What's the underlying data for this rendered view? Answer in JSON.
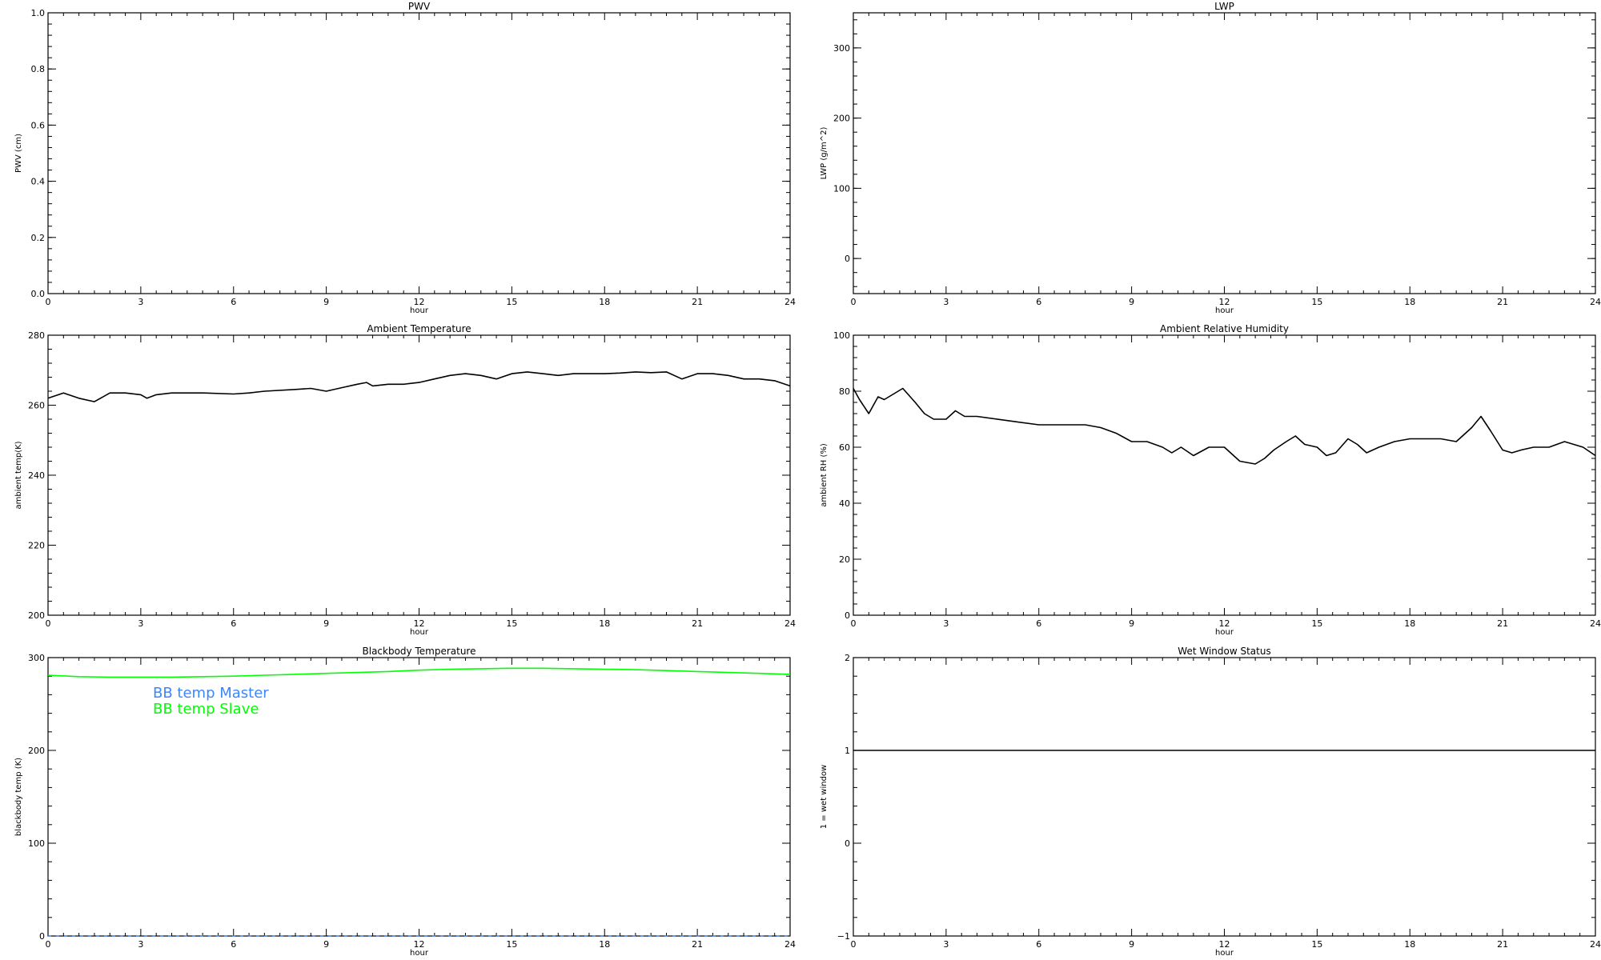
{
  "chart_data": [
    {
      "type": "line",
      "title": "PWV",
      "xlabel": "hour",
      "ylabel": "PWV (cm)",
      "xlim": [
        0,
        24
      ],
      "ylim": [
        0,
        1
      ],
      "xticks": [
        "0",
        "3",
        "6",
        "9",
        "12",
        "15",
        "18",
        "21",
        "24"
      ],
      "yticks": [
        "0.0",
        "0.2",
        "0.4",
        "0.6",
        "0.8",
        "1.0"
      ],
      "series": []
    },
    {
      "type": "line",
      "title": "LWP",
      "xlabel": "hour",
      "ylabel": "LWP (g/m^2)",
      "xlim": [
        0,
        24
      ],
      "ylim": [
        -50,
        350
      ],
      "xticks": [
        "0",
        "3",
        "6",
        "9",
        "12",
        "15",
        "18",
        "21",
        "24"
      ],
      "yticks": [
        "0",
        "100",
        "200",
        "300"
      ],
      "series": []
    },
    {
      "type": "line",
      "title": "Ambient Temperature",
      "xlabel": "hour",
      "ylabel": "ambient temp(K)",
      "xlim": [
        0,
        24
      ],
      "ylim": [
        200,
        280
      ],
      "xticks": [
        "0",
        "3",
        "6",
        "9",
        "12",
        "15",
        "18",
        "21",
        "24"
      ],
      "yticks": [
        "200",
        "220",
        "240",
        "260",
        "280"
      ],
      "series": [
        {
          "color": "#000000",
          "x": [
            0,
            0.5,
            1,
            1.5,
            2,
            2.5,
            3,
            3.2,
            3.5,
            4,
            5,
            6,
            6.5,
            7,
            8,
            8.5,
            9,
            9.5,
            10,
            10.3,
            10.5,
            11,
            11.5,
            12,
            12.5,
            13,
            13.5,
            14,
            14.5,
            15,
            15.5,
            16,
            16.5,
            17,
            17.5,
            18,
            18.5,
            19,
            19.5,
            20,
            20.5,
            21,
            21.5,
            22,
            22.5,
            23,
            23.5,
            24
          ],
          "y": [
            262,
            263.5,
            262,
            261,
            263.5,
            263.5,
            263,
            262,
            263,
            263.5,
            263.5,
            263.2,
            263.5,
            264,
            264.5,
            264.8,
            264,
            265,
            266,
            266.5,
            265.5,
            266,
            266,
            266.5,
            267.5,
            268.5,
            269,
            268.5,
            267.5,
            269,
            269.5,
            269,
            268.5,
            269,
            269,
            269,
            269.2,
            269.5,
            269.3,
            269.5,
            267.5,
            269,
            269,
            268.5,
            267.5,
            267.5,
            267,
            265.5
          ]
        }
      ]
    },
    {
      "type": "line",
      "title": "Ambient Relative Humidity",
      "xlabel": "hour",
      "ylabel": "ambient RH (%)",
      "xlim": [
        0,
        24
      ],
      "ylim": [
        0,
        100
      ],
      "xticks": [
        "0",
        "3",
        "6",
        "9",
        "12",
        "15",
        "18",
        "21",
        "24"
      ],
      "yticks": [
        "0",
        "20",
        "40",
        "60",
        "80",
        "100"
      ],
      "series": [
        {
          "color": "#000000",
          "x": [
            0,
            0.2,
            0.5,
            0.8,
            1,
            1.3,
            1.6,
            2,
            2.3,
            2.6,
            3,
            3.3,
            3.6,
            4,
            5,
            6,
            7,
            7.5,
            8,
            8.5,
            9,
            9.5,
            10,
            10.3,
            10.6,
            11,
            11.5,
            12,
            12.5,
            13,
            13.3,
            13.6,
            14,
            14.3,
            14.6,
            15,
            15.3,
            15.6,
            16,
            16.3,
            16.6,
            17,
            17.5,
            18,
            18.5,
            19,
            19.5,
            20,
            20.3,
            20.6,
            21,
            21.3,
            21.6,
            22,
            22.5,
            23,
            23.3,
            23.6,
            24
          ],
          "y": [
            81,
            77,
            72,
            78,
            77,
            79,
            81,
            76,
            72,
            70,
            70,
            73,
            71,
            71,
            69.5,
            68,
            68,
            68,
            67,
            65,
            62,
            62,
            60,
            58,
            60,
            57,
            60,
            60,
            55,
            54,
            56,
            59,
            62,
            64,
            61,
            60,
            57,
            58,
            63,
            61,
            58,
            60,
            62,
            63,
            63,
            63,
            62,
            67,
            71,
            66,
            59,
            58,
            59,
            60,
            60,
            62,
            61,
            60,
            57
          ]
        }
      ]
    },
    {
      "type": "line",
      "title": "Blackbody Temperature",
      "xlabel": "hour",
      "ylabel": "blackbody temp (K)",
      "xlim": [
        0,
        24
      ],
      "ylim": [
        0,
        300
      ],
      "xticks": [
        "0",
        "3",
        "6",
        "9",
        "12",
        "15",
        "18",
        "21",
        "24"
      ],
      "yticks": [
        "0",
        "100",
        "200",
        "300"
      ],
      "legend": "top-left",
      "series": [
        {
          "name": "BB temp Master",
          "color": "#3a86ff",
          "x": [
            0,
            3,
            6,
            9,
            12,
            15,
            18,
            21,
            24
          ],
          "y": [
            0,
            0,
            0,
            0,
            0,
            0,
            0,
            0,
            0
          ]
        },
        {
          "name": "BB temp Slave",
          "color": "#00ff00",
          "x": [
            0,
            1,
            2,
            3,
            4,
            5,
            6,
            7,
            8,
            9,
            10,
            11,
            12,
            13,
            14,
            15,
            16,
            17,
            18,
            19,
            20,
            21,
            22,
            23,
            24
          ],
          "y": [
            281,
            279.5,
            279,
            279,
            279,
            279.5,
            280,
            281,
            282,
            283,
            284,
            285,
            286.5,
            287.5,
            288,
            288.5,
            288.5,
            288,
            287.5,
            287,
            286,
            285,
            284,
            283,
            282
          ]
        }
      ]
    },
    {
      "type": "line",
      "title": "Wet Window Status",
      "xlabel": "hour",
      "ylabel": "1 = wet window",
      "xlim": [
        0,
        24
      ],
      "ylim": [
        -1,
        2
      ],
      "xticks": [
        "0",
        "3",
        "6",
        "9",
        "12",
        "15",
        "18",
        "21",
        "24"
      ],
      "yticks": [
        "−1",
        "0",
        "1",
        "2"
      ],
      "series": [
        {
          "color": "#000000",
          "x": [
            0,
            24
          ],
          "y": [
            1,
            1
          ]
        }
      ]
    }
  ]
}
